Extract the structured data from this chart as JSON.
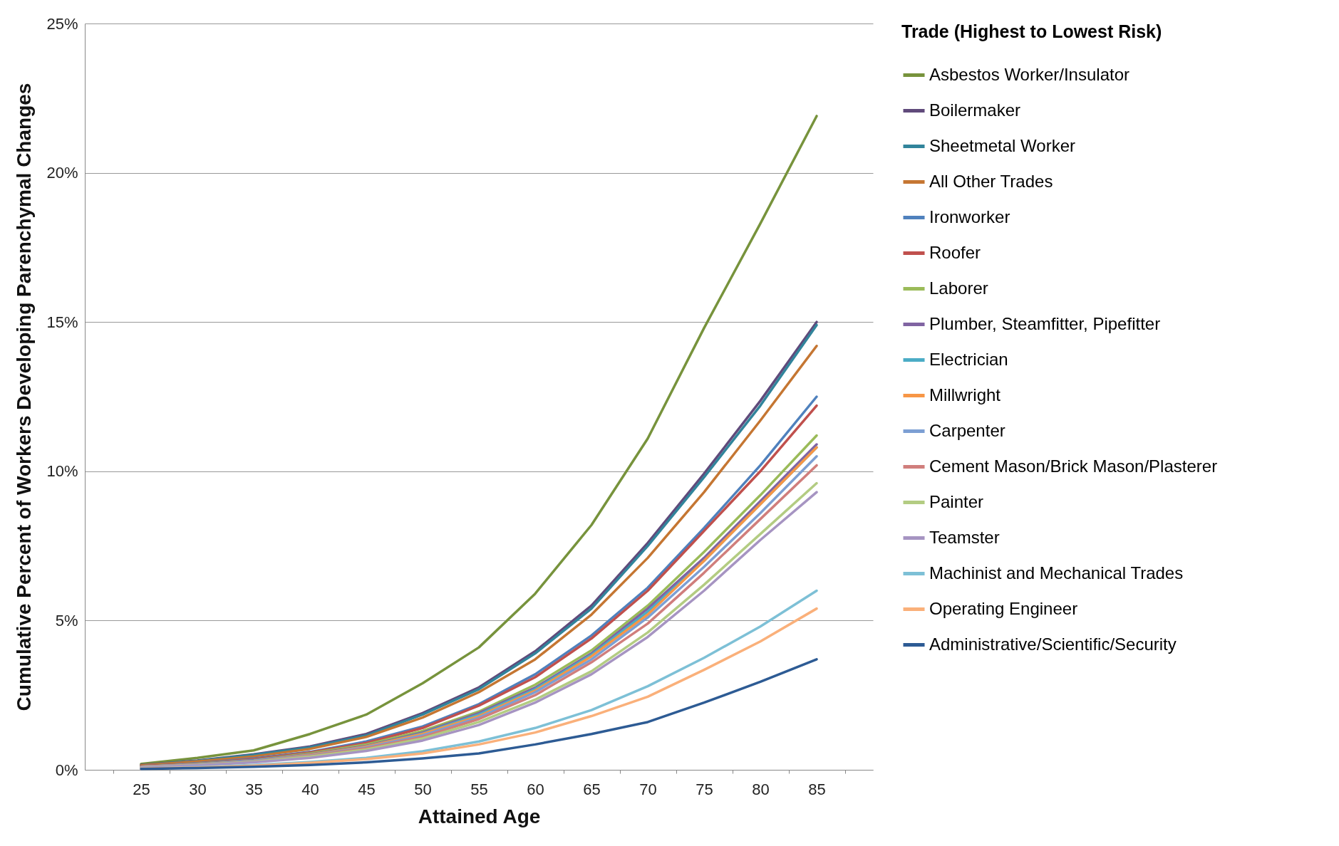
{
  "chart_data": {
    "type": "line",
    "xlabel": "Attained Age",
    "ylabel": "Cumulative Percent of Workers Developing Parenchymal Changes",
    "legend_title": "Trade (Highest to Lowest Risk)",
    "legend": "right",
    "grid": "y",
    "categories": [
      "25",
      "30",
      "35",
      "40",
      "45",
      "50",
      "55",
      "60",
      "65",
      "70",
      "75",
      "80",
      "85"
    ],
    "ylim": [
      0,
      25
    ],
    "yticks": [
      {
        "value": 0,
        "label": "0%"
      },
      {
        "value": 5,
        "label": "5%"
      },
      {
        "value": 10,
        "label": "10%"
      },
      {
        "value": 15,
        "label": "15%"
      },
      {
        "value": 20,
        "label": "20%"
      },
      {
        "value": 25,
        "label": "25%"
      }
    ],
    "series": [
      {
        "name": "Asbestos Worker/Insulator",
        "color": "#77933c",
        "values": [
          0.2,
          0.4,
          0.65,
          1.2,
          1.85,
          2.9,
          4.1,
          5.9,
          8.2,
          11.1,
          14.8,
          18.3,
          21.9
        ]
      },
      {
        "name": "Boilermaker",
        "color": "#604a7b",
        "values": [
          0.16,
          0.31,
          0.52,
          0.78,
          1.2,
          1.9,
          2.76,
          3.97,
          5.5,
          7.6,
          9.92,
          12.36,
          15.0
        ]
      },
      {
        "name": "Sheetmetal Worker",
        "color": "#31849b",
        "values": [
          0.15,
          0.3,
          0.5,
          0.75,
          1.15,
          1.85,
          2.7,
          3.9,
          5.4,
          7.5,
          9.8,
          12.2,
          14.9
        ]
      },
      {
        "name": "All Other Trades",
        "color": "#c57632",
        "values": [
          0.15,
          0.28,
          0.45,
          0.7,
          1.1,
          1.75,
          2.6,
          3.7,
          5.2,
          7.1,
          9.3,
          11.7,
          14.2
        ]
      },
      {
        "name": "Ironworker",
        "color": "#4f81bd",
        "values": [
          0.12,
          0.22,
          0.38,
          0.6,
          0.95,
          1.45,
          2.2,
          3.2,
          4.5,
          6.1,
          8.1,
          10.2,
          12.5
        ]
      },
      {
        "name": "Roofer",
        "color": "#c0504d",
        "values": [
          0.12,
          0.21,
          0.36,
          0.58,
          0.9,
          1.4,
          2.15,
          3.1,
          4.4,
          6.0,
          8.0,
          10.0,
          12.2
        ]
      },
      {
        "name": "Laborer",
        "color": "#9bbb59",
        "values": [
          0.1,
          0.2,
          0.33,
          0.55,
          0.85,
          1.3,
          1.95,
          2.85,
          4.0,
          5.5,
          7.3,
          9.2,
          11.2
        ]
      },
      {
        "name": "Plumber, Steamfitter, Pipefitter",
        "color": "#8064a2",
        "values": [
          0.1,
          0.19,
          0.32,
          0.52,
          0.8,
          1.25,
          1.9,
          2.75,
          3.9,
          5.4,
          7.1,
          9.0,
          10.9
        ]
      },
      {
        "name": "Electrician",
        "color": "#4bacc6",
        "values": [
          0.1,
          0.18,
          0.31,
          0.5,
          0.78,
          1.22,
          1.85,
          2.7,
          3.85,
          5.3,
          7.0,
          8.9,
          10.8
        ]
      },
      {
        "name": "Millwright",
        "color": "#f79646",
        "values": [
          0.1,
          0.18,
          0.3,
          0.5,
          0.78,
          1.2,
          1.8,
          2.65,
          3.8,
          5.2,
          7.0,
          8.9,
          10.8
        ]
      },
      {
        "name": "Carpenter",
        "color": "#7c9fd3",
        "values": [
          0.1,
          0.18,
          0.3,
          0.48,
          0.75,
          1.15,
          1.75,
          2.6,
          3.7,
          5.1,
          6.8,
          8.6,
          10.5
        ]
      },
      {
        "name": "Cement Mason/Brick Mason/Plasterer",
        "color": "#d07e7c",
        "values": [
          0.1,
          0.17,
          0.28,
          0.46,
          0.72,
          1.1,
          1.7,
          2.5,
          3.6,
          4.9,
          6.6,
          8.4,
          10.2
        ]
      },
      {
        "name": "Painter",
        "color": "#b3cc82",
        "values": [
          0.09,
          0.16,
          0.27,
          0.44,
          0.68,
          1.05,
          1.6,
          2.35,
          3.3,
          4.6,
          6.2,
          7.9,
          9.6
        ]
      },
      {
        "name": "Teamster",
        "color": "#a694c2",
        "values": [
          0.08,
          0.15,
          0.25,
          0.4,
          0.63,
          0.98,
          1.5,
          2.25,
          3.2,
          4.45,
          6.0,
          7.7,
          9.3
        ]
      },
      {
        "name": "Machinist and Mechanical Trades",
        "color": "#7dc0d6",
        "values": [
          0.05,
          0.09,
          0.16,
          0.26,
          0.4,
          0.62,
          0.95,
          1.4,
          2.0,
          2.8,
          3.75,
          4.8,
          6.0
        ]
      },
      {
        "name": "Operating Engineer",
        "color": "#fab07a",
        "values": [
          0.04,
          0.08,
          0.14,
          0.23,
          0.36,
          0.55,
          0.85,
          1.25,
          1.8,
          2.45,
          3.35,
          4.3,
          5.4
        ]
      },
      {
        "name": "Administrative/Scientific/Security",
        "color": "#2d5b94",
        "values": [
          0.03,
          0.06,
          0.1,
          0.16,
          0.25,
          0.38,
          0.55,
          0.85,
          1.2,
          1.6,
          2.25,
          2.95,
          3.7
        ]
      }
    ]
  }
}
